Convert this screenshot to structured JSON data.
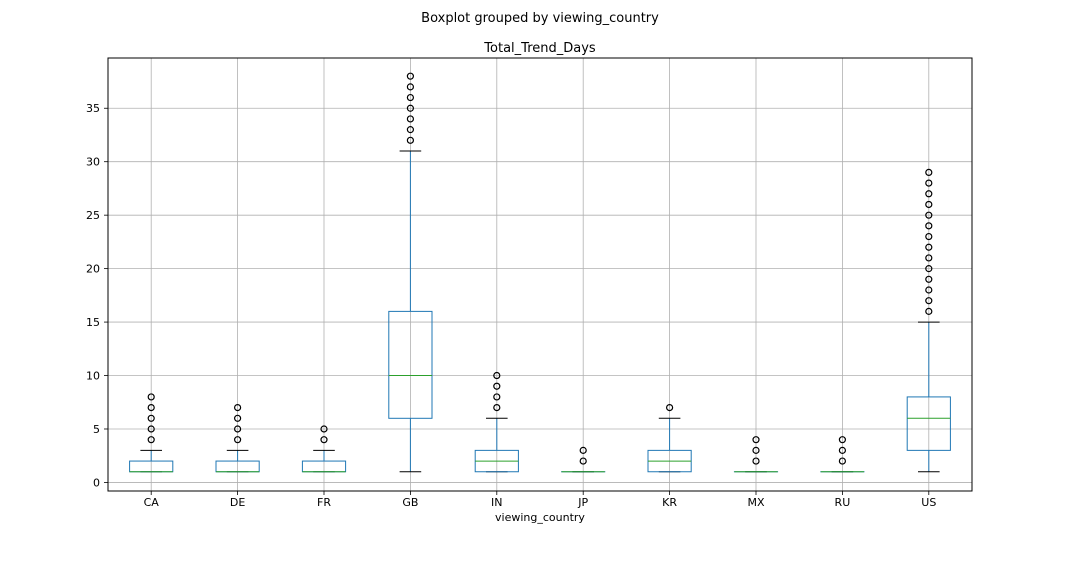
{
  "chart_data": {
    "type": "boxplot",
    "suptitle": "Boxplot grouped by viewing_country",
    "title": "Total_Trend_Days",
    "xlabel": "viewing_country",
    "ylabel": "",
    "ylim": [
      -0.8,
      39.7
    ],
    "yticks": [
      0,
      5,
      10,
      15,
      20,
      25,
      30,
      35
    ],
    "grid": true,
    "colors": {
      "box": "#1f77b4",
      "median": "#2ca02c",
      "grid": "#b0b0b0",
      "flier": "#000000"
    },
    "categories": [
      "CA",
      "DE",
      "FR",
      "GB",
      "IN",
      "JP",
      "KR",
      "MX",
      "RU",
      "US"
    ],
    "boxes": [
      {
        "name": "CA",
        "whislo": 1,
        "q1": 1,
        "med": 1,
        "q3": 2,
        "whishi": 3,
        "fliers": [
          4,
          5,
          6,
          7,
          8
        ]
      },
      {
        "name": "DE",
        "whislo": 1,
        "q1": 1,
        "med": 1,
        "q3": 2,
        "whishi": 3,
        "fliers": [
          4,
          5,
          6,
          7
        ]
      },
      {
        "name": "FR",
        "whislo": 1,
        "q1": 1,
        "med": 1,
        "q3": 2,
        "whishi": 3,
        "fliers": [
          4,
          5
        ]
      },
      {
        "name": "GB",
        "whislo": 1,
        "q1": 6,
        "med": 10,
        "q3": 16,
        "whishi": 31,
        "fliers": [
          32,
          33,
          34,
          35,
          36,
          37,
          38
        ]
      },
      {
        "name": "IN",
        "whislo": 1,
        "q1": 1,
        "med": 2,
        "q3": 3,
        "whishi": 6,
        "fliers": [
          7,
          8,
          9,
          10
        ]
      },
      {
        "name": "JP",
        "whislo": 1,
        "q1": 1,
        "med": 1,
        "q3": 1,
        "whishi": 1,
        "fliers": [
          2,
          3
        ]
      },
      {
        "name": "KR",
        "whislo": 1,
        "q1": 1,
        "med": 2,
        "q3": 3,
        "whishi": 6,
        "fliers": [
          7
        ]
      },
      {
        "name": "MX",
        "whislo": 1,
        "q1": 1,
        "med": 1,
        "q3": 1,
        "whishi": 1,
        "fliers": [
          2,
          3,
          4
        ]
      },
      {
        "name": "RU",
        "whislo": 1,
        "q1": 1,
        "med": 1,
        "q3": 1,
        "whishi": 1,
        "fliers": [
          2,
          3,
          4
        ]
      },
      {
        "name": "US",
        "whislo": 1,
        "q1": 3,
        "med": 6,
        "q3": 8,
        "whishi": 15,
        "fliers": [
          16,
          17,
          18,
          19,
          20,
          21,
          22,
          23,
          24,
          25,
          26,
          27,
          28,
          29
        ]
      }
    ]
  }
}
